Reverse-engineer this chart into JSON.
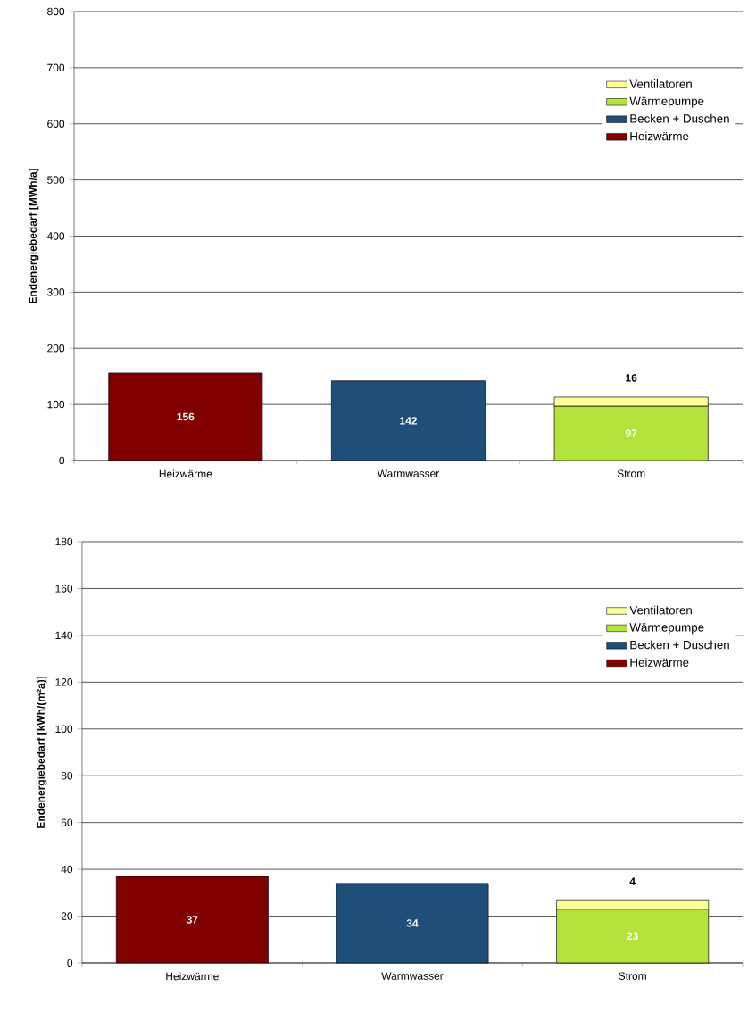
{
  "chart_data": [
    {
      "type": "bar",
      "stacked": true,
      "ylabel": "Endenergiebedarf [MWh/a]",
      "categories": [
        "Heizwärme",
        "Warmwasser",
        "Strom"
      ],
      "series": [
        {
          "name": "Heizwärme",
          "color": "#800000",
          "values": [
            156,
            null,
            null
          ]
        },
        {
          "name": "Becken + Duschen",
          "color": "#1f4e79",
          "values": [
            null,
            142,
            null
          ]
        },
        {
          "name": "Wärmepumpe",
          "color": "#b3e33b",
          "values": [
            null,
            null,
            97
          ]
        },
        {
          "name": "Ventilatoren",
          "color": "#ffff99",
          "values": [
            null,
            null,
            16
          ]
        }
      ],
      "ylim": [
        0,
        800
      ],
      "yticks": [
        0,
        100,
        200,
        300,
        400,
        500,
        600,
        700,
        800
      ],
      "grid": "y",
      "legend": "top right",
      "data_labels": true
    },
    {
      "type": "bar",
      "stacked": true,
      "ylabel": "Endenergiebedarf [kWh/(m²a)]",
      "categories": [
        "Heizwärme",
        "Warmwasser",
        "Strom"
      ],
      "series": [
        {
          "name": "Heizwärme",
          "color": "#800000",
          "values": [
            37,
            null,
            null
          ]
        },
        {
          "name": "Becken + Duschen",
          "color": "#1f4e79",
          "values": [
            null,
            34,
            null
          ]
        },
        {
          "name": "Wärmepumpe",
          "color": "#b3e33b",
          "values": [
            null,
            null,
            23
          ]
        },
        {
          "name": "Ventilatoren",
          "color": "#ffff99",
          "values": [
            null,
            null,
            4
          ]
        }
      ],
      "ylim": [
        0,
        180
      ],
      "yticks": [
        0,
        20,
        40,
        60,
        80,
        100,
        120,
        140,
        160,
        180
      ],
      "grid": "y",
      "legend": "top right",
      "data_labels": true
    }
  ]
}
